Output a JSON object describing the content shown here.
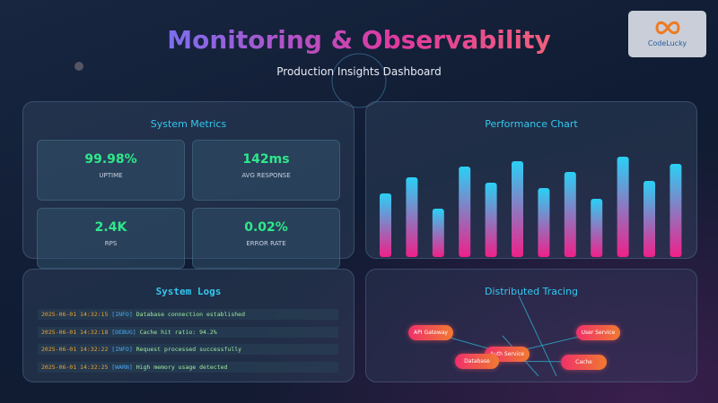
{
  "header": {
    "title": "Monitoring & Observability",
    "subtitle": "Production Insights Dashboard"
  },
  "logo": "CodeLucky",
  "system_metrics": {
    "title": "System Metrics",
    "cards": [
      {
        "value": "99.98%",
        "label": "UPTIME"
      },
      {
        "value": "142ms",
        "label": "AVG RESPONSE"
      },
      {
        "value": "2.4K",
        "label": "RPS"
      },
      {
        "value": "0.02%",
        "label": "ERROR RATE"
      }
    ]
  },
  "performance_chart": {
    "title": "Performance Chart",
    "values": [
      71,
      89,
      54,
      101,
      83,
      107,
      77,
      95,
      65,
      112,
      85,
      104
    ]
  },
  "system_logs": {
    "title": "System Logs",
    "entries": [
      {
        "timestamp": "2025-06-01 14:32:15",
        "level": "[INFO]",
        "message": "Database connection established"
      },
      {
        "timestamp": "2025-06-01 14:32:18",
        "level": "[DEBUG]",
        "message": "Cache hit ratio: 94.2%"
      },
      {
        "timestamp": "2025-06-01 14:32:22",
        "level": "[INFO]",
        "message": "Request processed successfully"
      },
      {
        "timestamp": "2025-06-01 14:32:25",
        "level": "[WARN]",
        "message": "High memory usage detected"
      }
    ]
  },
  "distributed_tracing": {
    "title": "Distributed Tracing",
    "nodes": [
      "API Gateway",
      "User Service",
      "Auth Service",
      "Database",
      "Cache"
    ]
  }
}
